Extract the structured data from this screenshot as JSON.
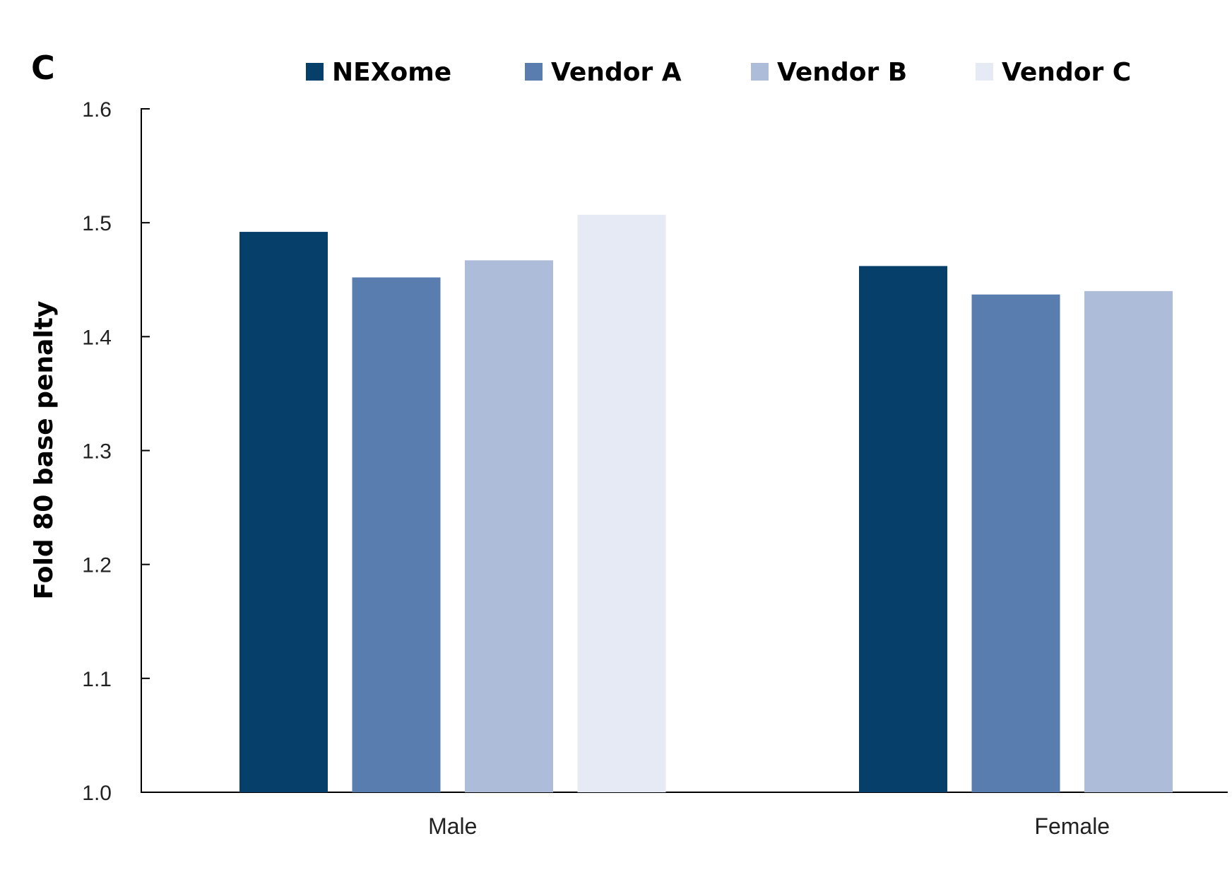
{
  "panel_label": "C",
  "chart_data": {
    "type": "bar",
    "categories": [
      "Male",
      "Female"
    ],
    "series": [
      {
        "name": "NEXome",
        "color": "#073f6b",
        "values": [
          1.492,
          1.462
        ]
      },
      {
        "name": "Vendor A",
        "color": "#597daf",
        "values": [
          1.452,
          1.437
        ]
      },
      {
        "name": "Vendor B",
        "color": "#adbdd9",
        "values": [
          1.467,
          1.44
        ]
      },
      {
        "name": "Vendor C",
        "color": "#e6eaf4",
        "values": [
          1.507,
          null
        ]
      }
    ],
    "ylabel": "Fold 80 base penalty",
    "xlabel": "",
    "ylim": [
      1.0,
      1.6
    ],
    "yticks": [
      "1.0",
      "1.1",
      "1.2",
      "1.3",
      "1.4",
      "1.5",
      "1.6"
    ],
    "legend_position": "top",
    "grid": false
  }
}
